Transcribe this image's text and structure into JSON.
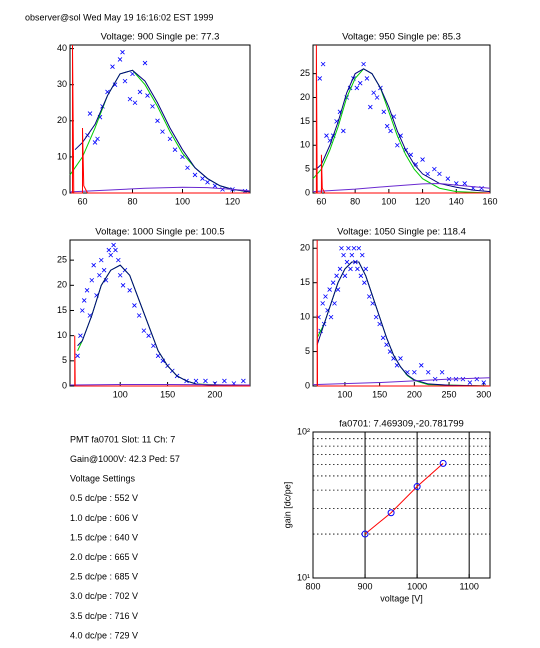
{
  "header": "observer@sol Wed May 19 16:16:02 EST 1999",
  "chart_data": [
    {
      "type": "scatter",
      "title": "Voltage: 900 Single pe: 77.3",
      "xlim": [
        55,
        127
      ],
      "ylim": [
        0,
        41
      ],
      "xticks": [
        60,
        80,
        100,
        120
      ],
      "yticks": [
        0,
        10,
        20,
        30,
        40
      ],
      "series": [
        {
          "style": "x",
          "color": "#0000ff",
          "x": [
            62,
            63,
            65,
            66,
            67,
            68,
            70,
            72,
            73,
            75,
            76,
            77,
            79,
            80,
            81,
            83,
            85,
            86,
            88,
            90,
            92,
            95,
            97,
            100,
            102,
            105,
            108,
            110,
            113,
            116,
            120,
            125
          ],
          "values": [
            16,
            22,
            14,
            15,
            21,
            24,
            28,
            35,
            30,
            37,
            39,
            31,
            26,
            33,
            25,
            28,
            36,
            27,
            24,
            20,
            17,
            15,
            12,
            10,
            7,
            5,
            4,
            3,
            2,
            1,
            1,
            0.5
          ]
        },
        {
          "style": "line",
          "color": "#00cc00",
          "x": [
            55,
            60,
            65,
            70,
            75,
            80,
            85,
            90,
            95,
            100,
            105,
            110,
            115,
            120,
            125,
            127
          ],
          "values": [
            5,
            10,
            18,
            27,
            33,
            34,
            30,
            24,
            17,
            11,
            7,
            4,
            2,
            1,
            0.5,
            0.3
          ]
        },
        {
          "style": "line",
          "color": "#000080",
          "x": [
            57,
            60,
            65,
            70,
            75,
            80,
            85,
            90,
            95,
            100,
            105,
            110,
            115,
            120,
            127
          ],
          "values": [
            12,
            14,
            19,
            27,
            33,
            34,
            31,
            25,
            18,
            12,
            7,
            4,
            2,
            1,
            0.3
          ]
        },
        {
          "style": "line",
          "color": "#6a2ad0",
          "x": [
            55,
            70,
            85,
            100,
            110,
            120,
            127
          ],
          "values": [
            0.3,
            0.8,
            1.3,
            1.6,
            1.5,
            1,
            0.6
          ]
        },
        {
          "style": "line",
          "color": "#ff0000",
          "x": [
            55.5,
            56,
            56,
            56.5,
            59.5,
            60,
            60,
            60.5,
            62,
            127
          ],
          "values": [
            0,
            0,
            41,
            0,
            0,
            0,
            18,
            2,
            0,
            0
          ]
        }
      ]
    },
    {
      "type": "scatter",
      "title": "Voltage: 950 Single pe: 85.3",
      "xlim": [
        55,
        160
      ],
      "ylim": [
        0,
        31
      ],
      "xticks": [
        60,
        80,
        100,
        120,
        140,
        160
      ],
      "yticks": [
        0,
        5,
        10,
        15,
        20,
        25
      ],
      "series": [
        {
          "style": "x",
          "color": "#0000ff",
          "x": [
            59,
            61,
            63,
            65,
            67,
            69,
            71,
            73,
            75,
            77,
            79,
            81,
            83,
            85,
            87,
            89,
            91,
            93,
            95,
            97,
            99,
            101,
            103,
            105,
            107,
            110,
            113,
            116,
            120,
            123,
            127,
            130,
            135,
            140,
            145,
            150,
            155
          ],
          "values": [
            24,
            27,
            12,
            11,
            12,
            15,
            17,
            13,
            20,
            22,
            24,
            22,
            23,
            27,
            24,
            18,
            21,
            20,
            22,
            17,
            14,
            13,
            16,
            10,
            12,
            9,
            8,
            6,
            7,
            4,
            5,
            4,
            3,
            2,
            2,
            1,
            1
          ]
        },
        {
          "style": "line",
          "color": "#00cc00",
          "x": [
            55,
            60,
            65,
            70,
            75,
            80,
            85,
            90,
            95,
            100,
            105,
            110,
            115,
            120,
            130,
            140,
            160
          ],
          "values": [
            3,
            5,
            9,
            14,
            20,
            24,
            26,
            25,
            22,
            17,
            12,
            8,
            5,
            3,
            1,
            0.3,
            0
          ]
        },
        {
          "style": "line",
          "color": "#000080",
          "x": [
            57,
            60,
            65,
            70,
            75,
            80,
            85,
            90,
            95,
            100,
            105,
            110,
            115,
            120,
            130,
            140,
            150,
            160
          ],
          "values": [
            5,
            6,
            10,
            15,
            21,
            25,
            26,
            25,
            22,
            18,
            13,
            9,
            6,
            4,
            2,
            1.2,
            0.6,
            0.3
          ]
        },
        {
          "style": "line",
          "color": "#6a2ad0",
          "x": [
            55,
            80,
            100,
            120,
            130,
            145,
            160
          ],
          "values": [
            0.3,
            0.8,
            1.4,
            1.9,
            2,
            1.5,
            1
          ]
        },
        {
          "style": "line",
          "color": "#ff0000",
          "x": [
            56.5,
            57,
            57,
            57.5,
            59.5,
            60,
            60,
            60.5,
            62,
            160
          ],
          "values": [
            0,
            0,
            31,
            0,
            0,
            0,
            8,
            1,
            0,
            0
          ]
        }
      ]
    },
    {
      "type": "scatter",
      "title": "Voltage: 1000 Single pe: 100.5",
      "xlim": [
        47,
        237
      ],
      "ylim": [
        0,
        29
      ],
      "xticks": [
        100,
        150,
        200
      ],
      "yticks": [
        0,
        5,
        10,
        15,
        20,
        25
      ],
      "series": [
        {
          "style": "x",
          "color": "#0000ff",
          "x": [
            55,
            58,
            60,
            62,
            65,
            68,
            70,
            72,
            75,
            78,
            80,
            83,
            85,
            88,
            90,
            93,
            95,
            98,
            100,
            103,
            105,
            110,
            115,
            120,
            125,
            130,
            135,
            140,
            145,
            150,
            155,
            160,
            170,
            180,
            190,
            200,
            210,
            220,
            230
          ],
          "values": [
            6,
            10,
            15,
            17,
            19,
            14,
            21,
            24,
            18,
            22,
            25,
            23,
            21,
            27,
            26,
            28,
            27,
            25,
            22,
            20,
            23,
            19,
            16,
            14,
            11,
            10,
            8,
            6,
            5,
            4,
            3,
            2,
            1,
            1,
            1,
            0.5,
            1,
            0.5,
            1
          ]
        },
        {
          "style": "line",
          "color": "#00cc00",
          "x": [
            55,
            60,
            70,
            80,
            90,
            100,
            110,
            120,
            130,
            140,
            150,
            160,
            170,
            180,
            237
          ],
          "values": [
            7,
            9,
            14,
            20,
            23,
            24,
            22,
            17,
            12,
            7,
            4,
            2,
            1,
            0.4,
            0
          ]
        },
        {
          "style": "line",
          "color": "#000080",
          "x": [
            55,
            60,
            70,
            80,
            90,
            100,
            110,
            120,
            130,
            140,
            150,
            160,
            170,
            180,
            200,
            237
          ],
          "values": [
            8,
            9,
            14,
            20,
            23,
            24,
            22,
            17,
            12,
            7,
            4,
            2,
            1,
            0.4,
            0.1,
            0
          ]
        },
        {
          "style": "line",
          "color": "#6a2ad0",
          "x": [
            47,
            100,
            150,
            237
          ],
          "values": [
            0.2,
            0.3,
            0.3,
            0.2
          ]
        },
        {
          "style": "line",
          "color": "#ff0000",
          "x": [
            51.5,
            52,
            52,
            52.5,
            237
          ],
          "values": [
            0,
            0,
            10,
            0,
            0
          ]
        }
      ]
    },
    {
      "type": "scatter",
      "title": "Voltage: 1050 Single pe: 118.4",
      "xlim": [
        54,
        309
      ],
      "ylim": [
        0,
        21.2
      ],
      "xticks": [
        100,
        150,
        200,
        250,
        300
      ],
      "yticks": [
        0,
        5,
        10,
        15,
        20
      ],
      "series": [
        {
          "style": "x",
          "color": "#0000ff",
          "x": [
            62,
            65,
            68,
            70,
            72,
            75,
            78,
            80,
            83,
            85,
            88,
            90,
            93,
            95,
            98,
            100,
            103,
            105,
            108,
            110,
            113,
            115,
            118,
            120,
            123,
            125,
            128,
            130,
            135,
            140,
            145,
            150,
            155,
            160,
            165,
            170,
            175,
            180,
            190,
            200,
            210,
            220,
            230,
            240,
            250,
            260,
            270,
            280,
            290,
            300
          ],
          "values": [
            10,
            8,
            12,
            9,
            13,
            11,
            14,
            10,
            15,
            12,
            16,
            14,
            17,
            20,
            19,
            16,
            18,
            20,
            17,
            19,
            20,
            18,
            17,
            20,
            16,
            19,
            15,
            17,
            13,
            12,
            10,
            9,
            7,
            6,
            5,
            4,
            3,
            4,
            2,
            2,
            3,
            2,
            1,
            2,
            1,
            1,
            1,
            0.5,
            1,
            0.5
          ]
        },
        {
          "style": "line",
          "color": "#00cc00",
          "x": [
            60,
            70,
            80,
            90,
            100,
            110,
            120,
            130,
            140,
            150,
            160,
            170,
            180,
            190,
            200,
            220,
            309
          ],
          "values": [
            7,
            9,
            12,
            15,
            17,
            18,
            18,
            16,
            13,
            10,
            7,
            4.5,
            2.8,
            1.5,
            0.8,
            0.2,
            0
          ]
        },
        {
          "style": "line",
          "color": "#000080",
          "x": [
            60,
            70,
            80,
            90,
            100,
            110,
            120,
            130,
            140,
            150,
            160,
            170,
            180,
            190,
            200,
            220,
            250,
            309
          ],
          "values": [
            6,
            9,
            12,
            15,
            17,
            18,
            18,
            16,
            13,
            10,
            7,
            4.5,
            2.8,
            1.6,
            0.9,
            0.3,
            0.1,
            0
          ]
        },
        {
          "style": "line",
          "color": "#6a2ad0",
          "x": [
            54,
            150,
            250,
            309
          ],
          "values": [
            0.2,
            0.5,
            1,
            1.2
          ]
        },
        {
          "style": "line",
          "color": "#ff0000",
          "x": [
            59.5,
            60,
            60,
            60.5,
            309
          ],
          "values": [
            0,
            0,
            21.2,
            0,
            0
          ]
        }
      ]
    },
    {
      "type": "line",
      "title": "fa0701: 7.469309,-20.781799",
      "xlabel": "voltage [V]",
      "ylabel": "gain [dc/pe]",
      "log_y": true,
      "xlim": [
        800,
        1140
      ],
      "ylim": [
        10,
        100
      ],
      "xticks": [
        800,
        900,
        1000,
        1100
      ],
      "yticks": [
        {
          "value": 10,
          "label": "10¹"
        },
        {
          "value": 100,
          "label": "10²"
        }
      ],
      "xgrid": [
        900,
        1000,
        1100
      ],
      "ygrid": [
        20,
        30,
        40,
        50,
        60,
        70,
        80,
        90
      ],
      "series": [
        {
          "color": "#ff0000",
          "marker_color": "#0000ff",
          "x": [
            900,
            950,
            1000,
            1050
          ],
          "values": [
            20,
            28,
            42.3,
            61
          ]
        }
      ]
    }
  ],
  "info": {
    "lines": [
      "PMT fa0701 Slot: 11 Ch: 7",
      "Gain@1000V: 42.3 Ped: 57",
      "Voltage Settings",
      "0.5 dc/pe : 552 V",
      "1.0 dc/pe : 606 V",
      "1.5 dc/pe : 640 V",
      "2.0 dc/pe : 665 V",
      "2.5 dc/pe : 685 V",
      "3.0 dc/pe : 702 V",
      "3.5 dc/pe : 716 V",
      "4.0 dc/pe : 729 V"
    ]
  }
}
